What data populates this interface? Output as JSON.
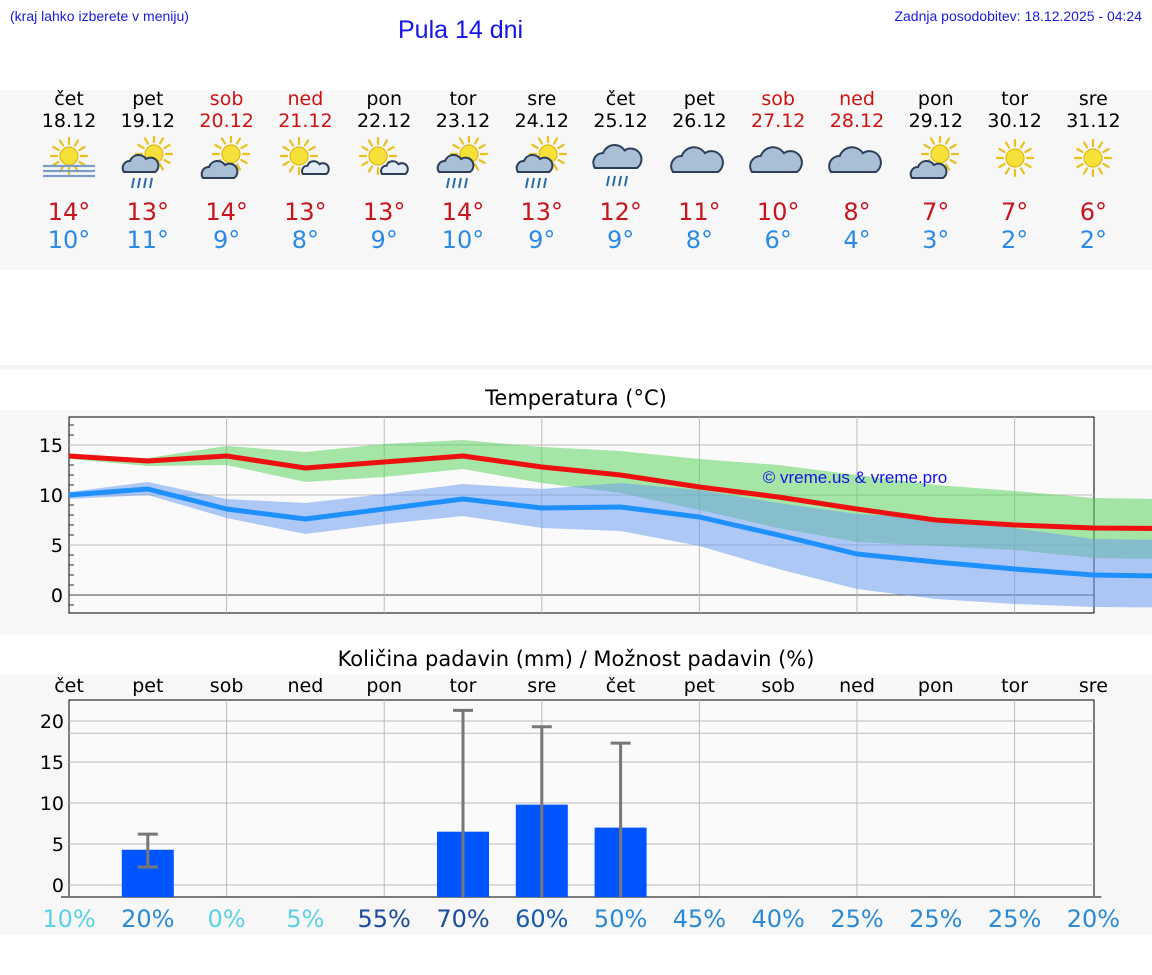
{
  "header": {
    "hint": "(kraj lahko izberete v meniju)",
    "title": "Pula 14 dni",
    "updated": "Zadnja posodobitev: 18.12.2025 - 04:24"
  },
  "colors": {
    "max": "#c8141e",
    "min": "#2a8ae6",
    "weekend": "#cc1111",
    "accent": "#1414e6"
  },
  "forecast": [
    {
      "day": "čet",
      "date": "18.12",
      "max": "14°",
      "min": "10°",
      "weekend": false,
      "icon": "sun-fog-icon"
    },
    {
      "day": "pet",
      "date": "19.12",
      "max": "13°",
      "min": "11°",
      "weekend": false,
      "icon": "sun-rain-icon"
    },
    {
      "day": "sob",
      "date": "20.12",
      "max": "14°",
      "min": "9°",
      "weekend": true,
      "icon": "partly-cloudy-icon"
    },
    {
      "day": "ned",
      "date": "21.12",
      "max": "13°",
      "min": "8°",
      "weekend": true,
      "icon": "mostly-sunny-icon"
    },
    {
      "day": "pon",
      "date": "22.12",
      "max": "13°",
      "min": "9°",
      "weekend": false,
      "icon": "mostly-sunny-icon"
    },
    {
      "day": "tor",
      "date": "23.12",
      "max": "14°",
      "min": "10°",
      "weekend": false,
      "icon": "sun-rain-icon"
    },
    {
      "day": "sre",
      "date": "24.12",
      "max": "13°",
      "min": "9°",
      "weekend": false,
      "icon": "sun-rain-icon"
    },
    {
      "day": "čet",
      "date": "25.12",
      "max": "12°",
      "min": "9°",
      "weekend": false,
      "icon": "cloud-rain-icon"
    },
    {
      "day": "pet",
      "date": "26.12",
      "max": "11°",
      "min": "8°",
      "weekend": false,
      "icon": "cloudy-icon"
    },
    {
      "day": "sob",
      "date": "27.12",
      "max": "10°",
      "min": "6°",
      "weekend": true,
      "icon": "cloudy-icon"
    },
    {
      "day": "ned",
      "date": "28.12",
      "max": "8°",
      "min": "4°",
      "weekend": true,
      "icon": "cloudy-icon"
    },
    {
      "day": "pon",
      "date": "29.12",
      "max": "7°",
      "min": "3°",
      "weekend": false,
      "icon": "partly-cloudy-icon"
    },
    {
      "day": "tor",
      "date": "30.12",
      "max": "7°",
      "min": "2°",
      "weekend": false,
      "icon": "sun-icon"
    },
    {
      "day": "sre",
      "date": "31.12",
      "max": "6°",
      "min": "2°",
      "weekend": false,
      "icon": "sun-icon"
    }
  ],
  "chart_data": [
    {
      "type": "line",
      "title": "Temperatura (°C)",
      "watermark": "© vreme.us & vreme.pro",
      "yticks": [
        "0",
        "5",
        "10",
        "15"
      ],
      "ylim": [
        -1.8,
        17.8
      ],
      "x": [
        0,
        1,
        2,
        3,
        4,
        5,
        6,
        7,
        8,
        9,
        10,
        11,
        12,
        13,
        14.7
      ],
      "series": [
        {
          "name": "max",
          "values": [
            13.9,
            13.4,
            13.9,
            12.7,
            13.3,
            13.9,
            12.8,
            12.0,
            10.8,
            9.8,
            8.6,
            7.5,
            7.0,
            6.7,
            6.6
          ]
        },
        {
          "name": "min",
          "values": [
            10.0,
            10.6,
            8.6,
            7.6,
            8.6,
            9.6,
            8.7,
            8.8,
            7.8,
            6.0,
            4.1,
            3.3,
            2.6,
            2.0,
            1.8
          ]
        }
      ],
      "bands": [
        {
          "name": "max-range",
          "upper": [
            14.0,
            13.7,
            14.9,
            14.3,
            15.1,
            15.5,
            14.8,
            14.4,
            13.6,
            13.0,
            12.0,
            11.0,
            10.4,
            9.7,
            9.5
          ],
          "lower": [
            13.6,
            12.9,
            13.0,
            11.3,
            11.8,
            12.6,
            11.2,
            10.2,
            8.5,
            6.7,
            5.3,
            4.9,
            4.5,
            3.7,
            3.5
          ]
        },
        {
          "name": "min-range",
          "upper": [
            10.3,
            11.3,
            9.6,
            9.2,
            10.1,
            11.1,
            10.6,
            11.2,
            10.5,
            9.2,
            8.1,
            7.7,
            6.7,
            5.6,
            5.4
          ]
        },
        {
          "name": "min-range-lower",
          "values": [
            9.6,
            10.0,
            7.7,
            6.1,
            7.1,
            7.9,
            6.7,
            6.4,
            4.9,
            2.6,
            0.6,
            -0.4,
            -0.9,
            -1.2,
            -1.3
          ]
        }
      ]
    },
    {
      "type": "bar",
      "title": "Količina padavin (mm) / Možnost padavin (%)",
      "categories": [
        "čet",
        "pet",
        "sob",
        "ned",
        "pon",
        "tor",
        "sre",
        "čet",
        "pet",
        "sob",
        "ned",
        "pon",
        "tor",
        "sre"
      ],
      "yticks": [
        "0",
        "5",
        "10",
        "15",
        "20"
      ],
      "values": [
        0,
        4.3,
        0,
        0,
        0,
        6.5,
        9.8,
        7.0,
        0,
        0,
        0,
        0,
        0,
        0
      ],
      "error_high": [
        0,
        6.2,
        0,
        0,
        0,
        21.3,
        19.3,
        17.3,
        0,
        0,
        0,
        0,
        0,
        0
      ],
      "error_low": [
        0,
        2.2,
        0,
        0,
        0,
        0,
        0,
        0,
        0,
        0,
        0,
        0,
        0,
        0
      ],
      "probability": [
        "10%",
        "20%",
        "0%",
        "5%",
        "55%",
        "70%",
        "60%",
        "50%",
        "45%",
        "40%",
        "25%",
        "25%",
        "25%",
        "20%"
      ],
      "probability_colors": [
        "#5bd0e6",
        "#2a8ad6",
        "#5bd0e6",
        "#5bd0e6",
        "#1a4a9e",
        "#1a4a9e",
        "#1a5aae",
        "#2a8ad6",
        "#2a8ad6",
        "#2a8ad6",
        "#2a8ad6",
        "#2a8ad6",
        "#2a8ad6",
        "#2a8ad6"
      ]
    }
  ]
}
